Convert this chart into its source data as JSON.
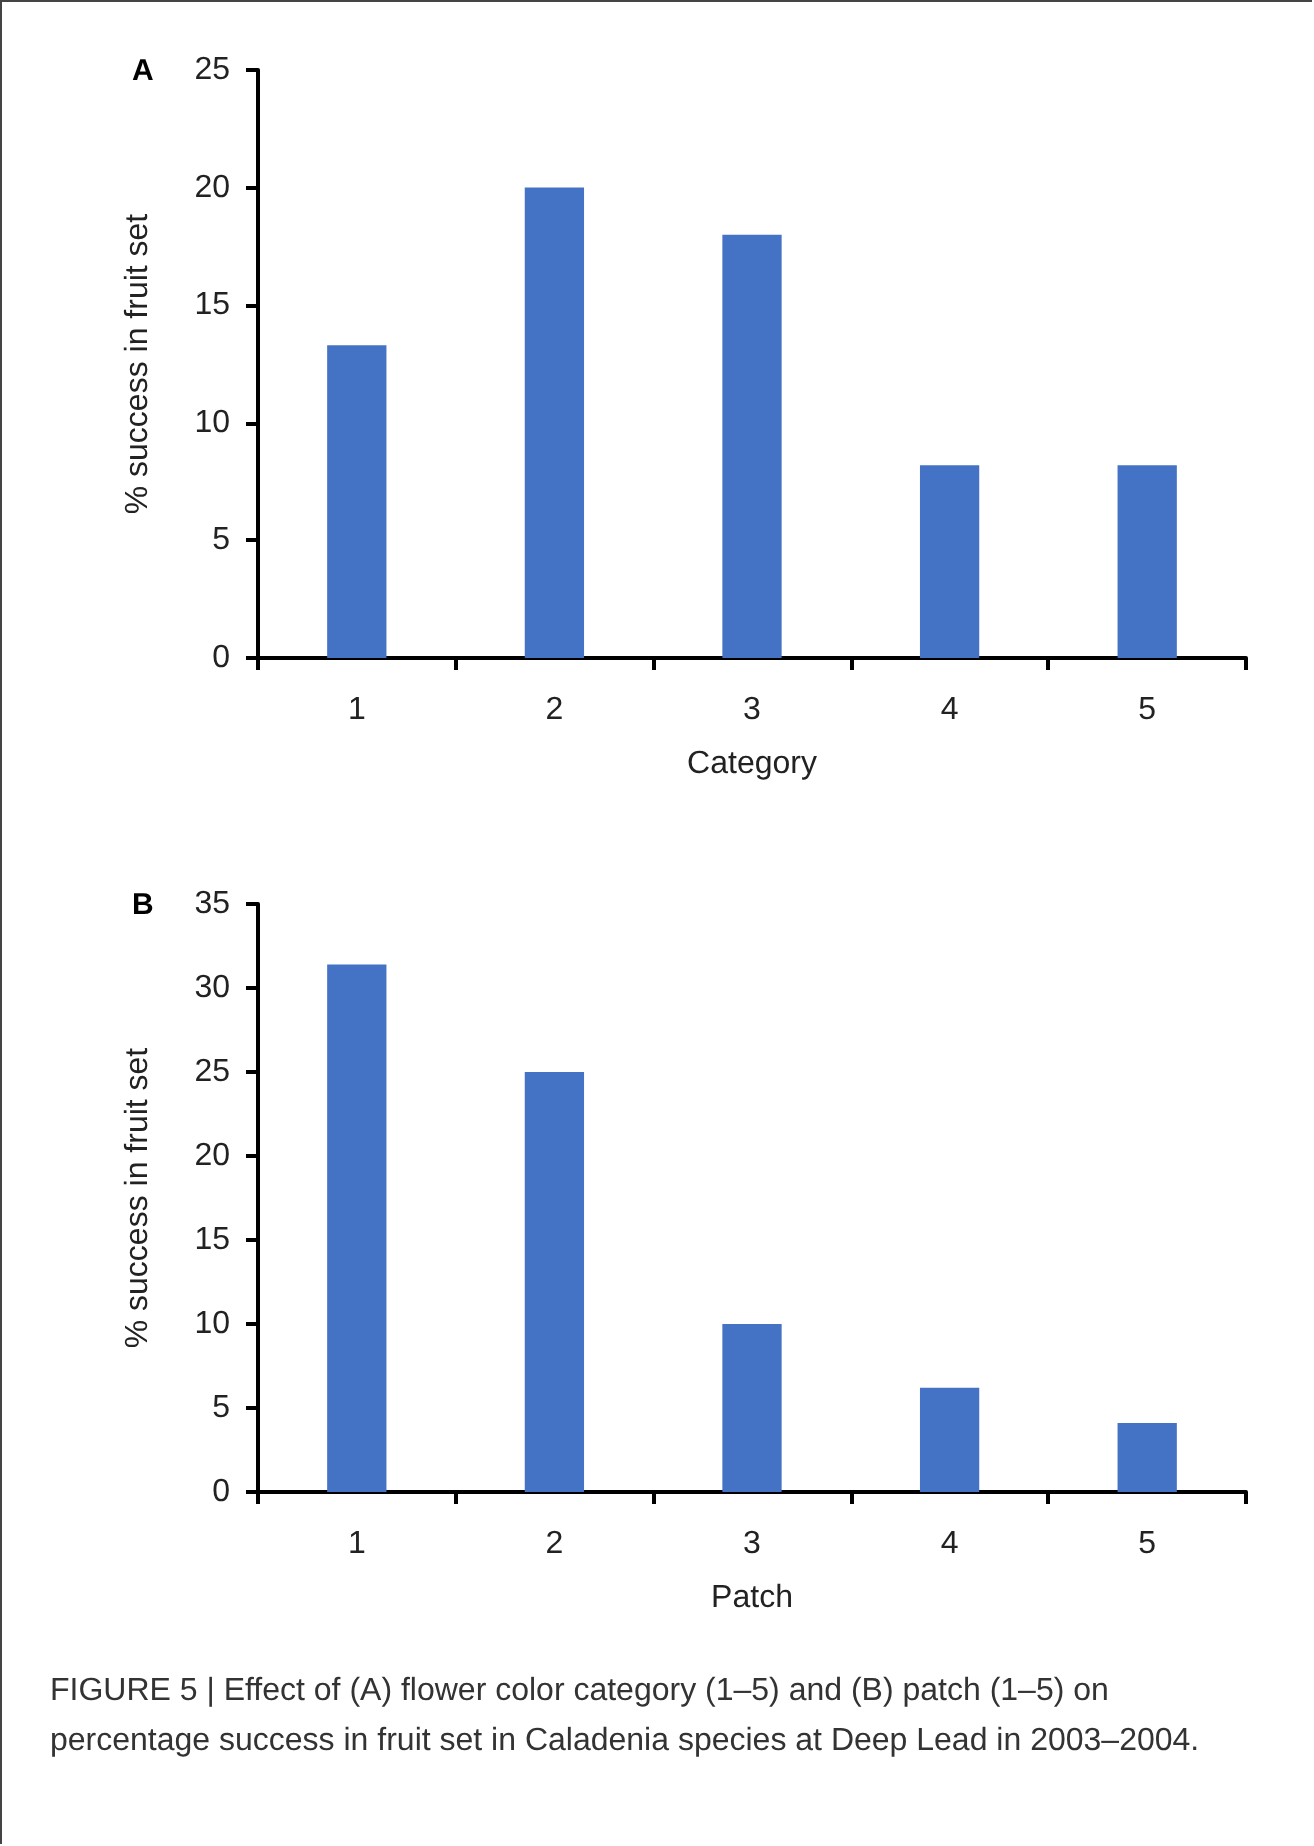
{
  "chart_data": [
    {
      "type": "bar",
      "title": "A",
      "categories": [
        "1",
        "2",
        "3",
        "4",
        "5"
      ],
      "values": [
        13.3,
        20,
        18,
        8.2,
        8.2
      ],
      "color": "#4472c4",
      "xlabel": "Category",
      "ylabel": "% success in fruit set",
      "ylim": [
        0,
        25
      ],
      "yticks": [
        0,
        5,
        10,
        15,
        20,
        25
      ],
      "grid": false
    },
    {
      "type": "bar",
      "title": "B",
      "categories": [
        "1",
        "2",
        "3",
        "4",
        "5"
      ],
      "values": [
        31.4,
        25,
        10,
        6.2,
        4.1
      ],
      "color": "#4472c4",
      "xlabel": "Patch",
      "ylabel": "% success in fruit set",
      "ylim": [
        0,
        35
      ],
      "yticks": [
        0,
        5,
        10,
        15,
        20,
        25,
        30,
        35
      ],
      "grid": false,
      "annotations": [
        "FIGURE 5 | Effect of (A) flower color category (1–5) and (B) patch (1–5) on percentage success in fruit set in Caladenia species at Deep Lead in 2003–2004."
      ]
    }
  ]
}
